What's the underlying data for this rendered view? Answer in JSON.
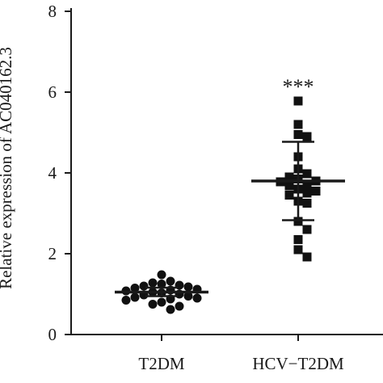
{
  "chart_data": {
    "type": "scatter",
    "ylabel": "Relative expression of AC040162.3",
    "ylim": [
      0,
      8
    ],
    "yticks": [
      0,
      2,
      4,
      6,
      8
    ],
    "categories": [
      "T2DM",
      "HCV−T2DM"
    ],
    "grid": false,
    "series": [
      {
        "category": "T2DM",
        "marker": "circle",
        "mean": 1.05,
        "sd_low": 0.95,
        "sd_high": 1.16,
        "values": [
          1.48,
          1.32,
          1.28,
          1.25,
          1.22,
          1.2,
          1.18,
          1.15,
          1.12,
          1.1,
          1.08,
          1.05,
          1.03,
          1.0,
          0.98,
          0.95,
          0.92,
          0.9,
          0.88,
          0.85,
          0.8,
          0.75,
          0.7,
          0.62
        ]
      },
      {
        "category": "HCV−T2DM",
        "marker": "square",
        "mean": 3.8,
        "sd_low": 2.83,
        "sd_high": 4.77,
        "values": [
          5.78,
          5.2,
          4.95,
          4.9,
          4.4,
          4.1,
          3.98,
          3.9,
          3.85,
          3.8,
          3.78,
          3.72,
          3.68,
          3.6,
          3.55,
          3.5,
          3.45,
          3.3,
          3.25,
          2.8,
          2.6,
          2.35,
          2.1,
          1.92
        ]
      }
    ],
    "annotations": [
      {
        "category": "HCV−T2DM",
        "text": "***",
        "y": 6.2
      }
    ]
  }
}
